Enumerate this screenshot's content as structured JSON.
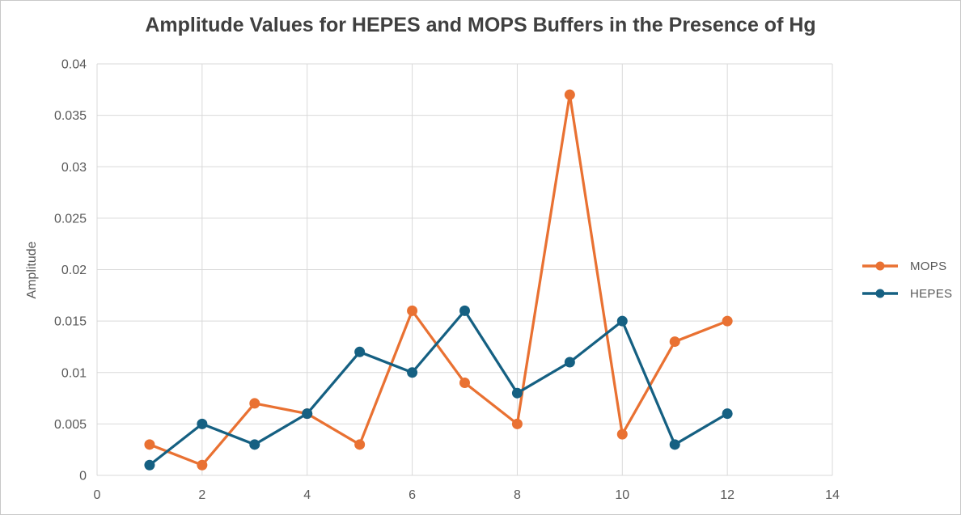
{
  "window": {
    "background": "#ffffff",
    "border_color": "#c8c8c8"
  },
  "styles": {
    "title_color": "#404040",
    "tick_label_color": "#595959",
    "axis_title_color": "#595959",
    "gridline_color": "#d9d9d9"
  },
  "chart_data": {
    "type": "line",
    "title": "Amplitude Values for HEPES and MOPS Buffers in the Presence of Hg",
    "xlabel": "",
    "ylabel": "Amplitude",
    "x": [
      1,
      2,
      3,
      4,
      5,
      6,
      7,
      8,
      9,
      10,
      11,
      12
    ],
    "series": [
      {
        "name": "MOPS",
        "color": "#E97132",
        "marker": "circle",
        "values": [
          0.003,
          0.001,
          0.007,
          0.006,
          0.003,
          0.016,
          0.009,
          0.005,
          0.037,
          0.004,
          0.013,
          0.015
        ]
      },
      {
        "name": "HEPES",
        "color": "#156082",
        "marker": "circle",
        "values": [
          0.001,
          0.005,
          0.003,
          0.006,
          0.012,
          0.01,
          0.016,
          0.008,
          0.011,
          0.015,
          0.003,
          0.006
        ]
      }
    ],
    "xlim": [
      0,
      14
    ],
    "ylim": [
      0,
      0.04
    ],
    "x_tick_values": [
      0,
      2,
      4,
      6,
      8,
      10,
      12,
      14
    ],
    "x_tick_labels": [
      "0",
      "2",
      "4",
      "6",
      "8",
      "10",
      "12",
      "14"
    ],
    "y_tick_values": [
      0,
      0.005,
      0.01,
      0.015,
      0.02,
      0.025,
      0.03,
      0.035,
      0.04
    ],
    "y_tick_labels": [
      "0",
      "0.005",
      "0.01",
      "0.015",
      "0.02",
      "0.025",
      "0.03",
      "0.035",
      "0.04"
    ],
    "grid": true,
    "legend_position": "right"
  }
}
